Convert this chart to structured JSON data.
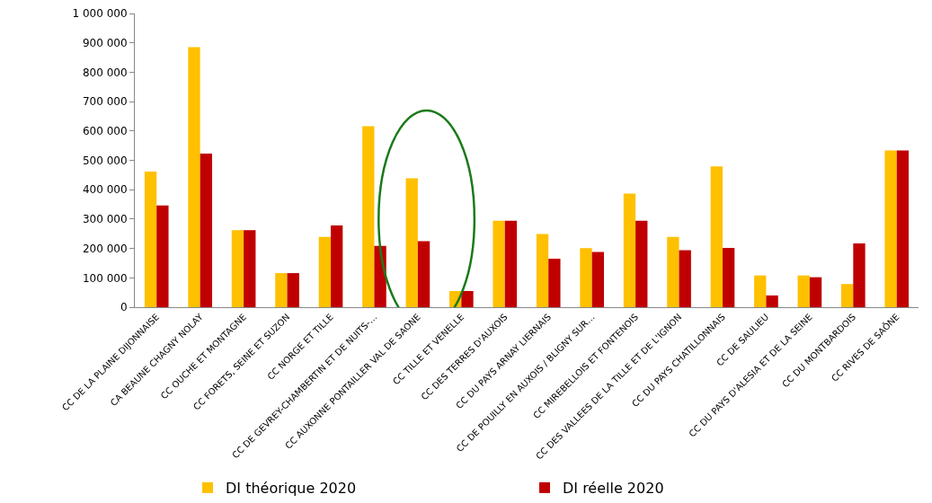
{
  "chart_data": {
    "type": "bar",
    "categories": [
      "CC DE LA PLAINE DIJONNAISE",
      "CA BEAUNE CHAGNY NOLAY",
      "CC OUCHE ET MONTAGNE",
      "CC FORETS, SEINE ET SUZON",
      "CC NORGE ET TILLE",
      "CC DE GEVREY-CHAMBERTIN ET DE NUITS-…",
      "CC AUXONNE PONTAILLER VAL DE SAONE",
      "CC TILLE ET VENELLE",
      "CC DES TERRES D'AUXOIS",
      "CC DU PAYS ARNAY LIERNAIS",
      "CC DE POUILLY EN AUXOIS / BLIGNY SUR…",
      "CC MIREBELLOIS ET FONTENOIS",
      "CC DES VALLEES DE LA TILLE ET DE L'IGNON",
      "CC DU PAYS CHATILLONNAIS",
      "CC DE SAULIEU",
      "CC DU PAYS D'ALESIA ET DE LA SEINE",
      "CC DU MONTBARDOIS",
      "CC RIVES DE SAÔNE"
    ],
    "series": [
      {
        "name": "DI théorique 2020",
        "color": "#ffc000",
        "values": [
          462000,
          885000,
          262000,
          116000,
          239000,
          616000,
          439000,
          55000,
          294000,
          249000,
          201000,
          387000,
          239000,
          479000,
          108000,
          108000,
          79000,
          534000
        ]
      },
      {
        "name": "DI réelle 2020",
        "color": "#c00000",
        "values": [
          346000,
          523000,
          262000,
          116000,
          278000,
          209000,
          225000,
          55000,
          294000,
          165000,
          188000,
          294000,
          194000,
          202000,
          40000,
          102000,
          217000,
          534000
        ]
      }
    ],
    "ylim": [
      0,
      1000000
    ],
    "yticks": [
      {
        "value": 0,
        "label": "0"
      },
      {
        "value": 100000,
        "label": "100 000"
      },
      {
        "value": 200000,
        "label": "200 000"
      },
      {
        "value": 300000,
        "label": "300 000"
      },
      {
        "value": 400000,
        "label": "400 000"
      },
      {
        "value": 500000,
        "label": "500 000"
      },
      {
        "value": 600000,
        "label": "600 000"
      },
      {
        "value": 700000,
        "label": "700 000"
      },
      {
        "value": 800000,
        "label": "800 000"
      },
      {
        "value": 900000,
        "label": "900 000"
      },
      {
        "value": 1000000,
        "label": "1 000 000"
      }
    ],
    "grid": false,
    "legend": "bottom"
  }
}
